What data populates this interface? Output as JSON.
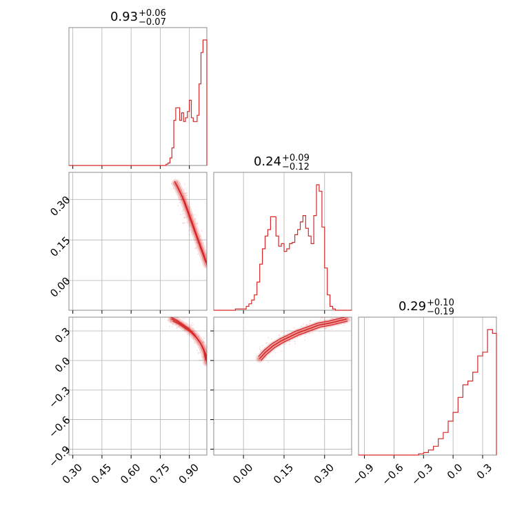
{
  "chart_data": {
    "type": "corner",
    "color": "#d62728",
    "grid": true,
    "params": [
      {
        "median": "0.93",
        "plus": "+0.06",
        "minus": "−0.07",
        "range": [
          0.28,
          0.99
        ],
        "ticks": [
          0.3,
          0.45,
          0.6,
          0.75,
          0.9
        ],
        "tick_labels": [
          "0.30",
          "0.45",
          "0.60",
          "0.75",
          "0.90"
        ]
      },
      {
        "median": "0.24",
        "plus": "+0.09",
        "minus": "−0.12",
        "range": [
          -0.11,
          0.4
        ],
        "ticks": [
          0.0,
          0.15,
          0.3
        ],
        "tick_labels": [
          "0.00",
          "0.15",
          "0.30"
        ]
      },
      {
        "median": "0.29",
        "plus": "+0.10",
        "minus": "−0.19",
        "range": [
          -0.96,
          0.44
        ],
        "ticks": [
          -0.9,
          -0.6,
          -0.3,
          0.0,
          0.3
        ],
        "tick_labels": [
          "−0.9",
          "−0.6",
          "−0.3",
          "0.0",
          "0.3"
        ]
      }
    ],
    "histograms": [
      {
        "param": 0,
        "x": [
          0.78,
          0.79,
          0.8,
          0.81,
          0.82,
          0.83,
          0.84,
          0.85,
          0.86,
          0.87,
          0.88,
          0.89,
          0.9,
          0.91,
          0.92,
          0.93,
          0.94,
          0.95,
          0.96,
          0.97,
          0.98
        ],
        "counts": [
          0.01,
          0.02,
          0.06,
          0.14,
          0.36,
          0.46,
          0.46,
          0.36,
          0.42,
          0.35,
          0.38,
          0.43,
          0.52,
          0.38,
          0.35,
          0.35,
          0.4,
          0.65,
          0.9,
          1.0,
          1.0
        ]
      },
      {
        "param": 1,
        "x": [
          -0.11,
          -0.1,
          -0.09,
          -0.08,
          -0.07,
          -0.06,
          -0.05,
          -0.04,
          -0.03,
          -0.02,
          -0.01,
          0.0,
          0.01,
          0.02,
          0.03,
          0.04,
          0.05,
          0.06,
          0.07,
          0.08,
          0.09,
          0.1,
          0.11,
          0.12,
          0.13,
          0.14,
          0.15,
          0.16,
          0.17,
          0.18,
          0.19,
          0.2,
          0.21,
          0.22,
          0.23,
          0.24,
          0.25,
          0.26,
          0.27,
          0.28,
          0.29,
          0.3,
          0.31,
          0.32,
          0.33,
          0.34,
          0.35,
          0.36,
          0.37,
          0.38,
          0.39
        ],
        "counts": [
          0.0,
          0.0,
          0.0,
          0.0,
          0.0,
          0.0,
          0.0,
          0.0,
          0.01,
          0.01,
          0.01,
          0.01,
          0.03,
          0.05,
          0.08,
          0.12,
          0.22,
          0.36,
          0.48,
          0.58,
          0.63,
          0.73,
          0.73,
          0.58,
          0.5,
          0.52,
          0.46,
          0.48,
          0.52,
          0.53,
          0.59,
          0.63,
          0.69,
          0.74,
          0.64,
          0.58,
          0.52,
          0.74,
          0.98,
          0.93,
          0.65,
          0.33,
          0.12,
          0.03,
          0.01,
          0.0,
          0.0,
          0.0,
          0.0,
          0.0,
          0.0
        ],
        "note": "binned on displayed domain"
      },
      {
        "param": 2,
        "x": [
          -0.9,
          -0.85,
          -0.8,
          -0.75,
          -0.7,
          -0.65,
          -0.6,
          -0.55,
          -0.5,
          -0.45,
          -0.4,
          -0.35,
          -0.3,
          -0.25,
          -0.2,
          -0.15,
          -0.1,
          -0.05,
          0.0,
          0.05,
          0.1,
          0.15,
          0.2,
          0.25,
          0.3,
          0.35,
          0.4
        ],
        "counts": [
          0.0,
          0.0,
          0.0,
          0.0,
          0.0,
          0.0,
          0.0,
          0.0,
          0.0,
          0.0,
          0.0,
          0.01,
          0.02,
          0.04,
          0.07,
          0.13,
          0.18,
          0.27,
          0.34,
          0.46,
          0.56,
          0.59,
          0.66,
          0.79,
          0.82,
          1.0,
          0.97
        ]
      }
    ],
    "contours": [
      {
        "pair": [
          0,
          1
        ],
        "ridge_x": [
          0.83,
          0.85,
          0.87,
          0.89,
          0.91,
          0.93,
          0.95,
          0.97,
          0.99
        ],
        "ridge_y": [
          0.36,
          0.33,
          0.3,
          0.26,
          0.22,
          0.18,
          0.14,
          0.1,
          0.06
        ]
      },
      {
        "pair": [
          0,
          2
        ],
        "ridge_x": [
          0.81,
          0.84,
          0.87,
          0.9,
          0.93,
          0.96,
          0.98,
          0.99
        ],
        "ridge_y": [
          0.42,
          0.39,
          0.35,
          0.31,
          0.25,
          0.17,
          0.08,
          -0.02
        ]
      },
      {
        "pair": [
          1,
          2
        ],
        "ridge_x": [
          0.06,
          0.08,
          0.11,
          0.14,
          0.17,
          0.2,
          0.24,
          0.28,
          0.32,
          0.35,
          0.38
        ],
        "ridge_y": [
          0.02,
          0.08,
          0.15,
          0.2,
          0.24,
          0.28,
          0.32,
          0.36,
          0.38,
          0.4,
          0.42
        ]
      }
    ]
  }
}
